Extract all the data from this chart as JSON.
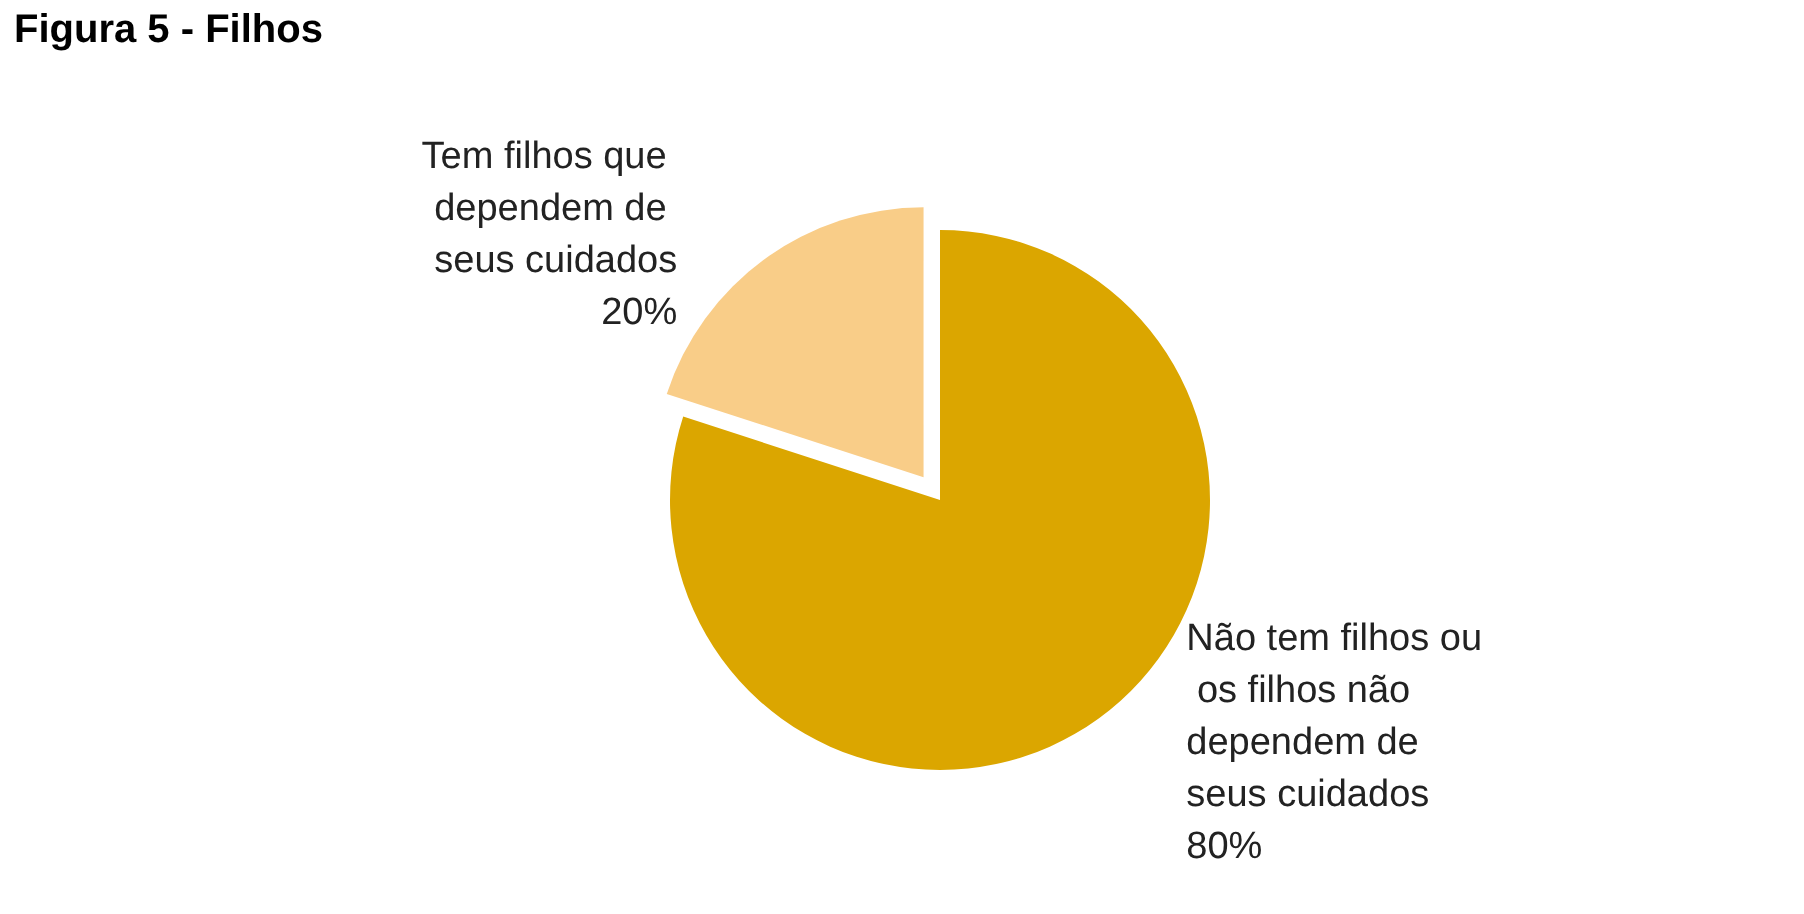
{
  "chart_data": {
    "type": "pie",
    "title": "Figura 5 - Filhos",
    "categories": [
      "Não tem filhos ou os filhos não dependem de seus cuidados",
      "Tem filhos que dependem de seus cuidados"
    ],
    "values": [
      80,
      20
    ],
    "colors": [
      "#dba600",
      "#f9cd88"
    ],
    "value_labels": [
      "80%",
      "20%"
    ],
    "legend": false
  }
}
